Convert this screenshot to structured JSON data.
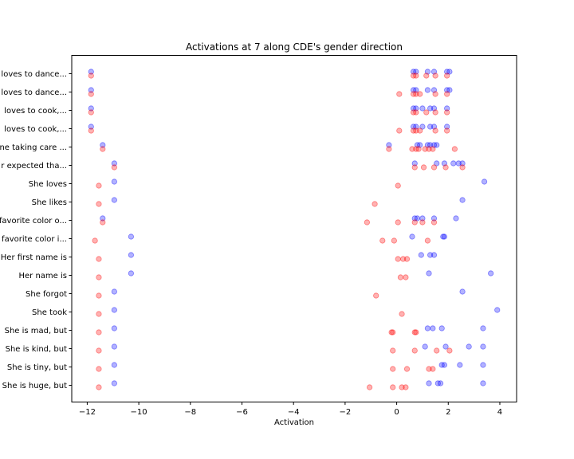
{
  "chart_data": {
    "type": "scatter",
    "title": "Activations at 7 along CDE's gender direction",
    "xlabel": "Activation",
    "ylabel": "",
    "xlim": [
      -12.6,
      4.65
    ],
    "xticks": [
      -12,
      -10,
      -8,
      -6,
      -4,
      -2,
      0,
      2,
      4
    ],
    "xtick_labels": [
      "−12",
      "−10",
      "−8",
      "−6",
      "−4",
      "−2",
      "0",
      "2",
      "4"
    ],
    "grid": false,
    "colors": {
      "blue": "#0000ff",
      "red": "#ff0000"
    },
    "categories": [
      "loves to dance...",
      "loves to dance...",
      "loves to cook,...",
      "loves to cook,...",
      "ne taking care ...",
      "r expected tha...",
      "She loves",
      "She likes",
      "favorite color o...",
      "favorite color i...",
      "Her first name is",
      "Her name is",
      "She forgot",
      "She took",
      "She is mad, but",
      "She is kind, but",
      "She is tiny, but",
      "She is huge, but"
    ],
    "rows": [
      {
        "blue": [
          -11.85,
          0.65,
          0.75,
          1.2,
          1.45,
          1.95,
          2.05
        ],
        "red": [
          -11.85,
          0.65,
          0.75,
          1.15,
          1.5,
          1.95
        ]
      },
      {
        "blue": [
          -11.85,
          0.65,
          0.75,
          1.2,
          1.45,
          1.95,
          2.05
        ],
        "red": [
          -11.85,
          0.1,
          0.65,
          0.75,
          0.9,
          1.5,
          1.95
        ]
      },
      {
        "blue": [
          -11.85,
          0.65,
          0.75,
          1.0,
          1.3,
          1.45,
          1.95
        ],
        "red": [
          -11.85,
          0.65,
          0.75,
          1.15,
          1.5,
          1.95
        ]
      },
      {
        "blue": [
          -11.85,
          0.65,
          0.75,
          1.0,
          1.3,
          1.45,
          1.95
        ],
        "red": [
          -11.85,
          0.1,
          0.65,
          0.75,
          0.9,
          1.5,
          1.95
        ]
      },
      {
        "blue": [
          -11.4,
          -0.3,
          0.8,
          0.9,
          1.2,
          1.3,
          1.45,
          1.55
        ],
        "red": [
          -11.4,
          -0.3,
          0.6,
          0.75,
          0.85,
          1.1,
          1.25,
          1.4,
          2.25
        ]
      },
      {
        "blue": [
          -10.95,
          0.7,
          1.55,
          1.85,
          2.2,
          2.4,
          2.55
        ],
        "red": [
          -10.95,
          0.7,
          1.05,
          1.45,
          1.9,
          2.55
        ]
      },
      {
        "blue": [
          -10.95,
          3.4
        ],
        "red": [
          -11.55,
          0.05
        ]
      },
      {
        "blue": [
          -10.95,
          2.55
        ],
        "red": [
          -11.55,
          -0.85
        ]
      },
      {
        "blue": [
          -11.4,
          0.7,
          0.8,
          1.0,
          1.45,
          2.3
        ],
        "red": [
          -11.4,
          -1.15,
          0.05,
          0.7,
          1.0,
          1.45
        ]
      },
      {
        "blue": [
          -10.3,
          0.6,
          1.8,
          1.85
        ],
        "red": [
          -11.7,
          -0.55,
          -0.1,
          1.2
        ]
      },
      {
        "blue": [
          -10.3,
          0.95,
          1.3,
          1.45
        ],
        "red": [
          -11.55,
          0.05,
          0.25,
          0.4
        ]
      },
      {
        "blue": [
          -10.3,
          1.25,
          3.65
        ],
        "red": [
          -11.55,
          0.15,
          0.35
        ]
      },
      {
        "blue": [
          -10.95,
          2.55
        ],
        "red": [
          -11.55,
          -0.8
        ]
      },
      {
        "blue": [
          -10.95,
          3.9
        ],
        "red": [
          -11.55,
          0.2
        ]
      },
      {
        "blue": [
          -10.95,
          1.2,
          1.4,
          1.75,
          3.35
        ],
        "red": [
          -11.55,
          -0.2,
          -0.15,
          0.7,
          0.75
        ]
      },
      {
        "blue": [
          -10.95,
          1.1,
          1.9,
          2.8,
          3.35
        ],
        "red": [
          -11.55,
          -0.15,
          0.7,
          1.55,
          2.05
        ]
      },
      {
        "blue": [
          -10.95,
          1.75,
          1.85,
          2.45,
          3.35
        ],
        "red": [
          -11.55,
          -0.15,
          0.4,
          1.25,
          1.4
        ]
      },
      {
        "blue": [
          -10.95,
          1.25,
          1.6,
          1.7,
          3.35
        ],
        "red": [
          -11.55,
          -1.05,
          -0.15,
          0.2,
          0.35
        ]
      }
    ]
  }
}
